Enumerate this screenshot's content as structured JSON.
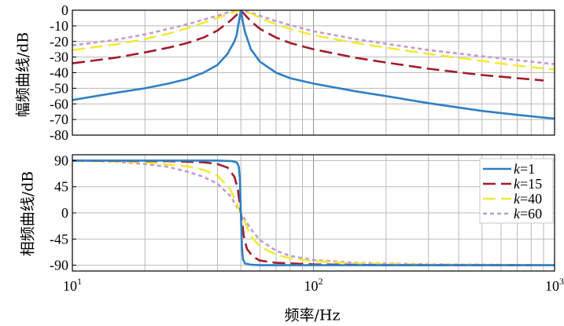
{
  "chart_data": [
    {
      "type": "line",
      "name": "magnitude",
      "ylabel": "幅频曲线/dB",
      "xscale": "log",
      "xlim": [
        10,
        1000
      ],
      "ylim": [
        -80,
        0
      ],
      "yticks": [
        "0",
        "-10",
        "-20",
        "-30",
        "-40",
        "-50",
        "-60",
        "-70",
        "-80"
      ],
      "ytick_values": [
        0,
        -10,
        -20,
        -30,
        -40,
        -50,
        -60,
        -70,
        -80
      ],
      "grid": true,
      "series": [
        {
          "key": "k1",
          "color": "#2f7fc4",
          "dash": "",
          "points": [
            [
              10,
              -57.5
            ],
            [
              15,
              -53
            ],
            [
              20,
              -50
            ],
            [
              25,
              -47
            ],
            [
              30,
              -44
            ],
            [
              35,
              -40
            ],
            [
              40,
              -35
            ],
            [
              44,
              -28
            ],
            [
              47,
              -20
            ],
            [
              48,
              -16
            ],
            [
              49,
              -8
            ],
            [
              50,
              0
            ],
            [
              51,
              -8
            ],
            [
              52,
              -14
            ],
            [
              55,
              -25
            ],
            [
              60,
              -33
            ],
            [
              70,
              -40
            ],
            [
              80,
              -43.5
            ],
            [
              100,
              -47
            ],
            [
              150,
              -52
            ],
            [
              200,
              -55
            ],
            [
              300,
              -59.5
            ],
            [
              500,
              -64.5
            ],
            [
              700,
              -67
            ],
            [
              1000,
              -69.5
            ]
          ]
        },
        {
          "key": "k15",
          "color": "#a01d2c",
          "dash": "16,7",
          "points": [
            [
              10,
              -34
            ],
            [
              15,
              -30.5
            ],
            [
              20,
              -27
            ],
            [
              25,
              -24
            ],
            [
              30,
              -21
            ],
            [
              35,
              -17.5
            ],
            [
              40,
              -13
            ],
            [
              45,
              -7
            ],
            [
              48,
              -3
            ],
            [
              50,
              0
            ],
            [
              52,
              -3
            ],
            [
              55,
              -7
            ],
            [
              60,
              -12
            ],
            [
              70,
              -17.5
            ],
            [
              80,
              -21
            ],
            [
              100,
              -25
            ],
            [
              150,
              -30.5
            ],
            [
              200,
              -33.5
            ],
            [
              300,
              -37.5
            ],
            [
              500,
              -41.5
            ],
            [
              700,
              -43.5
            ],
            [
              900,
              -45
            ]
          ]
        },
        {
          "key": "k40",
          "color": "#f1ea3a",
          "dash": "16,7",
          "points": [
            [
              10,
              -25.5
            ],
            [
              15,
              -22
            ],
            [
              20,
              -18.5
            ],
            [
              25,
              -15
            ],
            [
              30,
              -11.5
            ],
            [
              35,
              -8
            ],
            [
              40,
              -5
            ],
            [
              45,
              -2
            ],
            [
              50,
              0
            ],
            [
              55,
              -2
            ],
            [
              60,
              -5
            ],
            [
              70,
              -9
            ],
            [
              80,
              -12
            ],
            [
              100,
              -16
            ],
            [
              150,
              -21
            ],
            [
              200,
              -24
            ],
            [
              300,
              -28
            ],
            [
              500,
              -32.5
            ],
            [
              700,
              -35.5
            ],
            [
              1000,
              -38
            ]
          ]
        },
        {
          "key": "k60",
          "color": "#c39bd0",
          "dash": "5,4",
          "points": [
            [
              10,
              -22.5
            ],
            [
              15,
              -19
            ],
            [
              20,
              -15.5
            ],
            [
              25,
              -12
            ],
            [
              30,
              -9
            ],
            [
              35,
              -6
            ],
            [
              40,
              -3.5
            ],
            [
              45,
              -1
            ],
            [
              50,
              0
            ],
            [
              55,
              -1.5
            ],
            [
              60,
              -3.5
            ],
            [
              70,
              -7
            ],
            [
              80,
              -9.5
            ],
            [
              100,
              -13.5
            ],
            [
              150,
              -18.5
            ],
            [
              200,
              -21.5
            ],
            [
              300,
              -25.5
            ],
            [
              500,
              -29.5
            ],
            [
              700,
              -32
            ],
            [
              1000,
              -34.5
            ]
          ]
        }
      ]
    },
    {
      "type": "line",
      "name": "phase",
      "ylabel": "相频曲线/dB",
      "xlabel": "频率/Hz",
      "xscale": "log",
      "xlim": [
        10,
        1000
      ],
      "ylim": [
        -100,
        100
      ],
      "yticks": [
        "90",
        "45",
        "0",
        "-45",
        "-90"
      ],
      "ytick_values": [
        90,
        45,
        0,
        -45,
        -90
      ],
      "xticks": [
        {
          "value": 10,
          "base": "10",
          "exp": "1"
        },
        {
          "value": 100,
          "base": "10",
          "exp": "2"
        },
        {
          "value": 1000,
          "base": "10",
          "exp": "3"
        }
      ],
      "grid": true,
      "legend": {
        "position": "top-right",
        "entries": [
          {
            "key": "k1",
            "prefix": "k",
            "suffix": "=1"
          },
          {
            "key": "k15",
            "prefix": "k",
            "suffix": "=15"
          },
          {
            "key": "k40",
            "prefix": "k",
            "suffix": "=40"
          },
          {
            "key": "k60",
            "prefix": "k",
            "suffix": "=60"
          }
        ]
      },
      "series": [
        {
          "key": "k1",
          "color": "#2f7fc4",
          "dash": "",
          "points": [
            [
              10,
              90
            ],
            [
              40,
              90
            ],
            [
              46,
              89
            ],
            [
              48,
              87
            ],
            [
              49,
              80
            ],
            [
              49.5,
              60
            ],
            [
              50,
              0
            ],
            [
              50.5,
              -60
            ],
            [
              51,
              -80
            ],
            [
              52,
              -87
            ],
            [
              55,
              -89
            ],
            [
              60,
              -90
            ],
            [
              1000,
              -90
            ]
          ]
        },
        {
          "key": "k15",
          "color": "#a01d2c",
          "dash": "16,7",
          "points": [
            [
              10,
              90
            ],
            [
              25,
              89
            ],
            [
              35,
              87
            ],
            [
              40,
              84
            ],
            [
              44,
              78
            ],
            [
              47,
              62
            ],
            [
              48.5,
              42
            ],
            [
              50,
              0
            ],
            [
              51.5,
              -42
            ],
            [
              53,
              -62
            ],
            [
              56,
              -75
            ],
            [
              60,
              -82
            ],
            [
              70,
              -86
            ],
            [
              100,
              -88.5
            ],
            [
              200,
              -90
            ],
            [
              800,
              -90
            ]
          ]
        },
        {
          "key": "k40",
          "color": "#f1ea3a",
          "dash": "16,7",
          "points": [
            [
              10,
              90
            ],
            [
              20,
              87
            ],
            [
              30,
              80
            ],
            [
              35,
              74
            ],
            [
              40,
              64
            ],
            [
              45,
              42
            ],
            [
              50,
              0
            ],
            [
              55,
              -40
            ],
            [
              60,
              -58
            ],
            [
              70,
              -72
            ],
            [
              80,
              -78
            ],
            [
              100,
              -83
            ],
            [
              150,
              -87
            ],
            [
              300,
              -89
            ],
            [
              1000,
              -90
            ]
          ]
        },
        {
          "key": "k60",
          "color": "#c39bd0",
          "dash": "5,4",
          "points": [
            [
              10,
              90
            ],
            [
              15,
              88
            ],
            [
              20,
              84
            ],
            [
              25,
              79
            ],
            [
              30,
              71
            ],
            [
              35,
              62
            ],
            [
              40,
              50
            ],
            [
              45,
              30
            ],
            [
              50,
              0
            ],
            [
              55,
              -28
            ],
            [
              60,
              -47
            ],
            [
              70,
              -65
            ],
            [
              80,
              -74
            ],
            [
              100,
              -81
            ],
            [
              150,
              -86
            ],
            [
              300,
              -88.5
            ],
            [
              1000,
              -90
            ]
          ]
        }
      ]
    }
  ]
}
